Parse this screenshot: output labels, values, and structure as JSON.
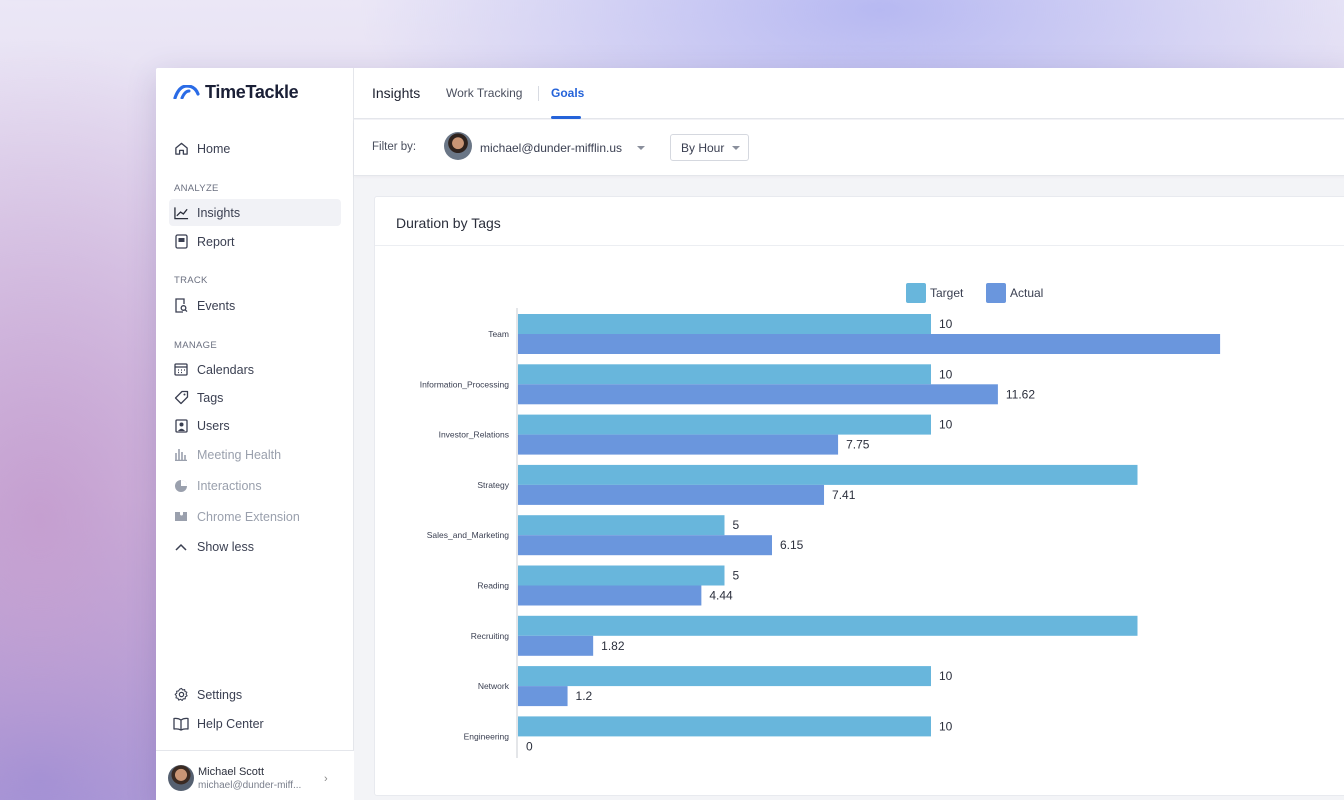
{
  "app": {
    "name": "TimeTackle"
  },
  "sidebar": {
    "home": "Home",
    "sections": {
      "analyze": "ANALYZE",
      "track": "TRACK",
      "manage": "MANAGE"
    },
    "items": {
      "insights": "Insights",
      "report": "Report",
      "events": "Events",
      "calendars": "Calendars",
      "tags": "Tags",
      "users": "Users",
      "meeting_health": "Meeting Health",
      "interactions": "Interactions",
      "chrome_extension": "Chrome Extension",
      "show_less": "Show less"
    },
    "bottom": {
      "settings": "Settings",
      "help_center": "Help Center"
    },
    "user": {
      "name": "Michael Scott",
      "email": "michael@dunder-miff..."
    }
  },
  "header": {
    "title": "Insights",
    "tabs": [
      {
        "label": "Work Tracking"
      },
      {
        "label": "Goals"
      }
    ],
    "active_tab": "Goals"
  },
  "filter": {
    "label": "Filter by:",
    "user_email": "michael@dunder-mifflin.us",
    "granularity": "By Hour"
  },
  "card": {
    "title": "Duration by Tags"
  },
  "chart_data": {
    "type": "bar",
    "orientation": "horizontal",
    "legend": [
      "Target",
      "Actual"
    ],
    "legend_position": "top-center",
    "categories": [
      "Team",
      "Information_Processing",
      "Investor_Relations",
      "Strategy",
      "Sales_and_Marketing",
      "Reading",
      "Recruiting",
      "Network",
      "Engineering"
    ],
    "series": [
      {
        "name": "Target",
        "color": "#68b6dc",
        "values": [
          10,
          10,
          10,
          15,
          5,
          5,
          15,
          10,
          10
        ],
        "labels": [
          "10",
          "10",
          "10",
          "",
          "5",
          "5",
          "",
          "10",
          "10"
        ]
      },
      {
        "name": "Actual",
        "color": "#6a96dd",
        "values": [
          17,
          11.62,
          7.75,
          7.41,
          6.15,
          4.44,
          1.82,
          1.2,
          0
        ],
        "labels": [
          "",
          "11.62",
          "7.75",
          "7.41",
          "6.15",
          "4.44",
          "1.82",
          "1.2",
          "0"
        ]
      }
    ],
    "xlim": [
      0,
      16.5
    ]
  }
}
